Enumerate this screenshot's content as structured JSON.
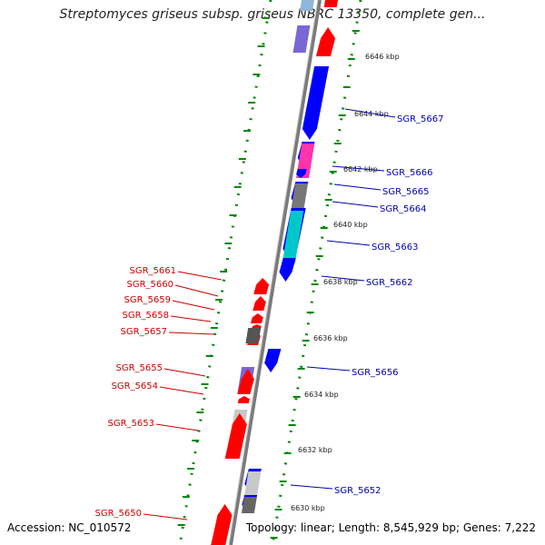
{
  "title": "Streptomyces griseus subsp. griseus NBRC 13350, complete gen...",
  "footer": {
    "accession": "Accession: NC_010572",
    "summary": "Topology: linear; Length: 8,545,929 bp; Genes: 7,222"
  },
  "ruler_labels": [
    "6646 kbp",
    "6644 kbp",
    "6642 kbp",
    "6640 kbp",
    "6638 kbp",
    "6636 kbp",
    "6634 kbp",
    "6632 kbp",
    "6630 kbp"
  ],
  "genes_right": [
    "SGR_5667",
    "SGR_5666",
    "SGR_5665",
    "SGR_5664",
    "SGR_5663",
    "SGR_5662",
    "SGR_5656",
    "SGR_5652"
  ],
  "genes_left": [
    "SGR_5661",
    "SGR_5660",
    "SGR_5659",
    "SGR_5658",
    "SGR_5657",
    "SGR_5655",
    "SGR_5654",
    "SGR_5653",
    "SGR_5650"
  ],
  "colors": {
    "forward_strand": "#ff0000",
    "reverse_strand": "#0000ff",
    "right_label": "#0000aa",
    "left_label": "#cc0000",
    "ruler": "#008800",
    "backbone": "#888888"
  }
}
